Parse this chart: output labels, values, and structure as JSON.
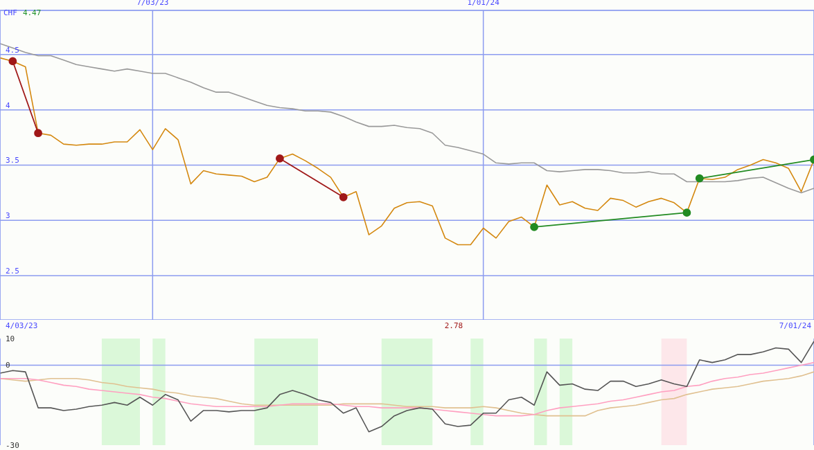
{
  "chart_data": [
    {
      "type": "line",
      "ylabel": "CHF",
      "annotations": [
        "4.47"
      ],
      "x": [
        "2023-04-10",
        "2023-04-17",
        "2023-04-24",
        "2023-05-01",
        "2023-05-08",
        "2023-05-15",
        "2023-05-22",
        "2023-05-29",
        "2023-06-05",
        "2023-06-12",
        "2023-06-19",
        "2023-06-26",
        "2023-07-03",
        "2023-07-10",
        "2023-07-17",
        "2023-07-24",
        "2023-07-31",
        "2023-08-07",
        "2023-08-14",
        "2023-08-21",
        "2023-08-28",
        "2023-09-04",
        "2023-09-11",
        "2023-09-18",
        "2023-09-25",
        "2023-10-02",
        "2023-10-09",
        "2023-10-16",
        "2023-10-23",
        "2023-10-30",
        "2023-11-06",
        "2023-11-13",
        "2023-11-20",
        "2023-11-27",
        "2023-12-04",
        "2023-12-11",
        "2023-12-18",
        "2023-12-25",
        "2024-01-01",
        "2024-01-08",
        "2024-01-15",
        "2024-01-22",
        "2024-01-29",
        "2024-02-05",
        "2024-02-12",
        "2024-02-19",
        "2024-02-26",
        "2024-03-04",
        "2024-03-11",
        "2024-03-18",
        "2024-03-25",
        "2024-04-01",
        "2024-04-08",
        "2024-04-15",
        "2024-04-22",
        "2024-04-29",
        "2024-05-06",
        "2024-05-13",
        "2024-05-20",
        "2024-05-27",
        "2024-06-03",
        "2024-06-10",
        "2024-06-17",
        "2024-06-24",
        "2024-07-01"
      ],
      "series": [
        {
          "color": "#999999",
          "values": [
            4.6,
            4.56,
            4.52,
            4.49,
            4.49,
            4.45,
            4.41,
            4.39,
            4.37,
            4.35,
            4.37,
            4.35,
            4.33,
            4.33,
            4.29,
            4.25,
            4.2,
            4.16,
            4.16,
            4.12,
            4.08,
            4.04,
            4.02,
            4.01,
            3.99,
            3.99,
            3.98,
            3.94,
            3.89,
            3.85,
            3.85,
            3.86,
            3.84,
            3.83,
            3.79,
            3.68,
            3.66,
            3.63,
            3.6,
            3.52,
            3.51,
            3.52,
            3.52,
            3.45,
            3.44,
            3.45,
            3.46,
            3.46,
            3.45,
            3.43,
            3.43,
            3.44,
            3.42,
            3.42,
            3.35,
            3.35,
            3.35,
            3.35,
            3.36,
            3.38,
            3.39,
            3.34,
            3.29,
            3.25,
            3.29
          ]
        },
        {
          "color": "#d4880f",
          "values": [
            4.47,
            4.44,
            4.39,
            3.79,
            3.77,
            3.69,
            3.68,
            3.69,
            3.69,
            3.71,
            3.71,
            3.82,
            3.64,
            3.83,
            3.73,
            3.33,
            3.45,
            3.42,
            3.41,
            3.4,
            3.35,
            3.39,
            3.56,
            3.6,
            3.54,
            3.47,
            3.39,
            3.21,
            3.26,
            2.87,
            2.95,
            3.11,
            3.16,
            3.17,
            3.13,
            2.84,
            2.78,
            2.78,
            2.93,
            2.84,
            2.99,
            3.03,
            2.94,
            3.32,
            3.14,
            3.17,
            3.11,
            3.09,
            3.2,
            3.18,
            3.12,
            3.17,
            3.2,
            3.16,
            3.07,
            3.38,
            3.37,
            3.39,
            3.46,
            3.5,
            3.55,
            3.52,
            3.47,
            3.26,
            3.55
          ]
        },
        {
          "type": "line",
          "marker": "circle",
          "color": "#a01818",
          "x": [
            "2023-04-17",
            "2023-05-01"
          ],
          "values": [
            4.44,
            3.79
          ]
        },
        {
          "type": "line",
          "marker": "circle",
          "color": "#a01818",
          "x": [
            "2023-09-11",
            "2023-10-16"
          ],
          "values": [
            3.56,
            3.21
          ]
        },
        {
          "type": "line",
          "marker": "circle",
          "color": "#228b22",
          "x": [
            "2024-01-29",
            "2024-04-22"
          ],
          "values": [
            2.94,
            3.07
          ]
        },
        {
          "type": "line",
          "marker": "circle",
          "color": "#228b22",
          "x": [
            "2024-04-29",
            "2024-07-01"
          ],
          "values": [
            3.38,
            3.55
          ]
        }
      ],
      "xlim": [
        "2023-04-10",
        "2024-07-01"
      ],
      "xticks": [
        {
          "value": "2023-07-03",
          "label": "7/03/23"
        },
        {
          "value": "2024-01-01",
          "label": "1/01/24"
        }
      ],
      "ylim": [
        2.1,
        4.9
      ],
      "yticks": [
        2.5,
        3,
        3.5,
        4,
        4.5
      ],
      "grid": true,
      "marker": "none"
    },
    {
      "type": "line",
      "annotations": [
        "4/03/23",
        "2.78",
        "7/01/24"
      ],
      "x": [
        "2023-04-10",
        "2023-04-17",
        "2023-04-24",
        "2023-05-01",
        "2023-05-08",
        "2023-05-15",
        "2023-05-22",
        "2023-05-29",
        "2023-06-05",
        "2023-06-12",
        "2023-06-19",
        "2023-06-26",
        "2023-07-03",
        "2023-07-10",
        "2023-07-17",
        "2023-07-24",
        "2023-07-31",
        "2023-08-07",
        "2023-08-14",
        "2023-08-21",
        "2023-08-28",
        "2023-09-04",
        "2023-09-11",
        "2023-09-18",
        "2023-09-25",
        "2023-10-02",
        "2023-10-09",
        "2023-10-16",
        "2023-10-23",
        "2023-10-30",
        "2023-11-06",
        "2023-11-13",
        "2023-11-20",
        "2023-11-27",
        "2023-12-04",
        "2023-12-11",
        "2023-12-18",
        "2023-12-25",
        "2024-01-01",
        "2024-01-08",
        "2024-01-15",
        "2024-01-22",
        "2024-01-29",
        "2024-02-05",
        "2024-02-12",
        "2024-02-19",
        "2024-02-26",
        "2024-03-04",
        "2024-03-11",
        "2024-03-18",
        "2024-03-25",
        "2024-04-01",
        "2024-04-08",
        "2024-04-15",
        "2024-04-22",
        "2024-04-29",
        "2024-05-06",
        "2024-05-13",
        "2024-05-20",
        "2024-05-27",
        "2024-06-03",
        "2024-06-10",
        "2024-06-17",
        "2024-06-24",
        "2024-07-01"
      ],
      "series": [
        {
          "color": "#e0c090",
          "values": [
            -5,
            -5.5,
            -6,
            -5.5,
            -5,
            -5,
            -5,
            -5.5,
            -6.5,
            -7,
            -8,
            -8.5,
            -9,
            -10,
            -10.5,
            -11.5,
            -12,
            -12.5,
            -13.5,
            -14.5,
            -15,
            -15,
            -15,
            -15,
            -15,
            -15,
            -15,
            -14.5,
            -14.5,
            -14.5,
            -14.5,
            -15,
            -15.5,
            -15.5,
            -15.5,
            -16,
            -16,
            -16,
            -15.5,
            -16,
            -17,
            -18,
            -18.5,
            -19,
            -19,
            -19,
            -19,
            -17,
            -16,
            -15.5,
            -15,
            -14,
            -13,
            -12.5,
            -11,
            -10,
            -9,
            -8.5,
            -8,
            -7,
            -6,
            -5.5,
            -5,
            -4,
            -2.5
          ]
        },
        {
          "color": "#ff9fc0",
          "values": [
            -5,
            -5,
            -5,
            -5.5,
            -6.5,
            -7.5,
            -8,
            -9,
            -9.5,
            -10,
            -10.5,
            -11,
            -12,
            -12.5,
            -13.5,
            -14.5,
            -15,
            -15.5,
            -15.5,
            -15.5,
            -15.5,
            -15.5,
            -15,
            -14.5,
            -14.5,
            -14.5,
            -14.5,
            -15,
            -15.5,
            -15.5,
            -16,
            -16,
            -16,
            -16,
            -16.5,
            -17,
            -17.5,
            -18,
            -18.5,
            -19,
            -19,
            -19,
            -18.5,
            -17,
            -16,
            -15.5,
            -15,
            -14.5,
            -13.5,
            -13,
            -12,
            -11,
            -10,
            -9.5,
            -8,
            -7.5,
            -6,
            -5,
            -4.5,
            -3.5,
            -3,
            -2,
            -1,
            0,
            1
          ]
        },
        {
          "color": "#555555",
          "values": [
            -3,
            -2,
            -2.5,
            -16,
            -16,
            -17,
            -16.5,
            -15.5,
            -15,
            -14,
            -15,
            -12,
            -15,
            -11,
            -13,
            -21,
            -17,
            -17,
            -17.5,
            -17,
            -17,
            -16,
            -11,
            -9.5,
            -11,
            -13,
            -14,
            -18,
            -16,
            -25,
            -23,
            -19,
            -17,
            -16,
            -16.5,
            -22,
            -23,
            -22.5,
            -18,
            -18,
            -13,
            -12,
            -15,
            -2.5,
            -7.5,
            -7,
            -9,
            -9.5,
            -6,
            -6,
            -8,
            -7,
            -5.5,
            -7,
            -8,
            2,
            1,
            2,
            4,
            4,
            5,
            6.5,
            6,
            1,
            9
          ]
        }
      ],
      "bands": [
        {
          "axis": "x",
          "from": "2023-06-05",
          "to": "2023-06-26",
          "color": "#90ee90"
        },
        {
          "axis": "x",
          "from": "2023-07-03",
          "to": "2023-07-10",
          "color": "#90ee90"
        },
        {
          "axis": "x",
          "from": "2023-08-28",
          "to": "2023-10-02",
          "color": "#90ee90"
        },
        {
          "axis": "x",
          "from": "2023-11-06",
          "to": "2023-12-04",
          "color": "#90ee90"
        },
        {
          "axis": "x",
          "from": "2023-12-25",
          "to": "2024-01-01",
          "color": "#90ee90"
        },
        {
          "axis": "x",
          "from": "2024-01-29",
          "to": "2024-02-05",
          "color": "#90ee90"
        },
        {
          "axis": "x",
          "from": "2024-02-12",
          "to": "2024-02-19",
          "color": "#90ee90"
        },
        {
          "axis": "x",
          "from": "2024-04-08",
          "to": "2024-04-22",
          "color": "#ffb6c8"
        }
      ],
      "xlim": [
        "2023-04-10",
        "2024-07-01"
      ],
      "xticks": [
        {
          "value": "2023-07-03",
          "label": null
        },
        {
          "value": "2024-01-01",
          "label": null
        }
      ],
      "ylim": [
        -30,
        10
      ],
      "yticks": [
        10,
        0,
        -30
      ],
      "grid": "x",
      "tick_labels": "y",
      "marker": "none",
      "ref_lines": [
        {
          "axis": "y",
          "value": 0,
          "color": "#8c9cf0"
        }
      ]
    }
  ]
}
